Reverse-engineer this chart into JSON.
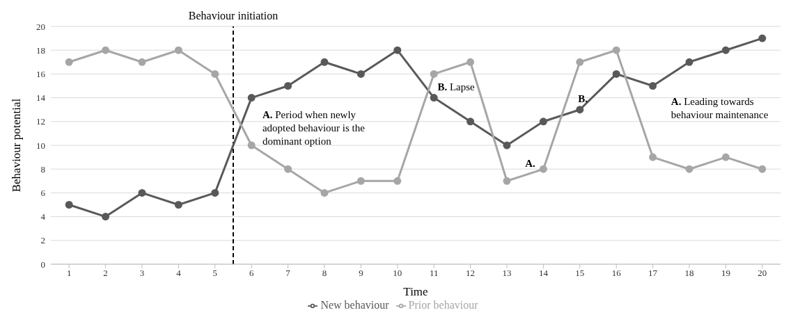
{
  "chart_data": {
    "type": "line",
    "xlabel": "Time",
    "ylabel": "Behaviour potential",
    "x": [
      1,
      2,
      3,
      4,
      5,
      6,
      7,
      8,
      9,
      10,
      11,
      12,
      13,
      14,
      15,
      16,
      17,
      18,
      19,
      20
    ],
    "xlim": [
      0.5,
      20.5
    ],
    "xticks": [
      1,
      2,
      3,
      4,
      5,
      6,
      7,
      8,
      9,
      10,
      11,
      12,
      13,
      14,
      15,
      16,
      17,
      18,
      19,
      20
    ],
    "ylim": [
      0,
      20
    ],
    "yticks": [
      0,
      2,
      4,
      6,
      8,
      10,
      12,
      14,
      16,
      18,
      20
    ],
    "series": [
      {
        "name": "New behaviour",
        "color": "#595959",
        "values": [
          5,
          4,
          6,
          5,
          6,
          14,
          15,
          17,
          16,
          18,
          14,
          12,
          10,
          12,
          13,
          16,
          15,
          17,
          18,
          19
        ]
      },
      {
        "name": "Prior behaviour",
        "color": "#a6a6a6",
        "values": [
          17,
          18,
          17,
          18,
          16,
          10,
          8,
          6,
          7,
          7,
          16,
          17,
          7,
          8,
          17,
          18,
          9,
          8,
          9,
          8
        ]
      }
    ],
    "ref_lines": [
      {
        "axis": "x",
        "value": 5.5,
        "label": "Behaviour initiation",
        "color": "#000000",
        "line_style": "dashed"
      }
    ],
    "annotations": [
      "A. Period when newly adopted behaviour is the dominant option",
      "B. Lapse",
      "A.",
      "B.",
      "A. Leading towards behaviour maintenance"
    ],
    "grid": "y",
    "legend": "bottom",
    "marker": "circle",
    "line_style": "solid"
  }
}
